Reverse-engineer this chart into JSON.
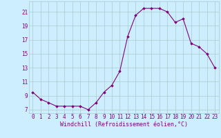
{
  "x": [
    0,
    1,
    2,
    3,
    4,
    5,
    6,
    7,
    8,
    9,
    10,
    11,
    12,
    13,
    14,
    15,
    16,
    17,
    18,
    19,
    20,
    21,
    22,
    23
  ],
  "y": [
    9.5,
    8.5,
    8.0,
    7.5,
    7.5,
    7.5,
    7.5,
    7.0,
    8.0,
    9.5,
    10.5,
    12.5,
    17.5,
    20.5,
    21.5,
    21.5,
    21.5,
    21.0,
    19.5,
    20.0,
    16.5,
    16.0,
    15.0,
    13.0
  ],
  "line_color": "#800080",
  "marker_color": "#800080",
  "bg_color": "#cceeff",
  "grid_color": "#aacccc",
  "xlabel": "Windchill (Refroidissement éolien,°C)",
  "ylabel_ticks": [
    7,
    9,
    11,
    13,
    15,
    17,
    19,
    21
  ],
  "xlim": [
    -0.5,
    23.5
  ],
  "ylim": [
    6.5,
    22.5
  ],
  "xtick_labels": [
    "0",
    "1",
    "2",
    "3",
    "4",
    "5",
    "6",
    "7",
    "8",
    "9",
    "10",
    "11",
    "12",
    "13",
    "14",
    "15",
    "16",
    "17",
    "18",
    "19",
    "20",
    "21",
    "22",
    "23"
  ],
  "font_color": "#800080",
  "tick_font_size": 5.5,
  "label_font_size": 6.0
}
